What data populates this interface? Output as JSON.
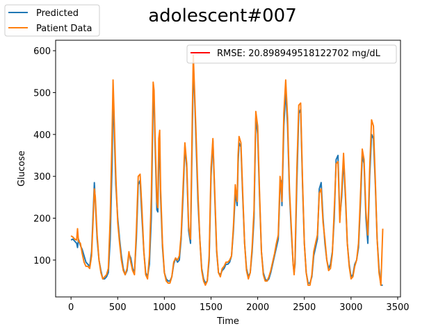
{
  "chart_data": {
    "type": "line",
    "title": "adolescent#007",
    "xlabel": "Time",
    "ylabel": "Glucose",
    "xlim": [
      -165,
      3530
    ],
    "ylim": [
      12,
      625
    ],
    "x_ticks": [
      0,
      500,
      1000,
      1500,
      2000,
      2500,
      3000,
      3500
    ],
    "y_ticks": [
      100,
      200,
      300,
      400,
      500,
      600
    ],
    "grid": false,
    "rmse_legend": {
      "label": "RMSE: 20.898949518122702 mg/dL",
      "color": "#ff0000",
      "placement": "upper right"
    },
    "figure_legend": {
      "placement": "upper left of figure",
      "entries": [
        "Predicted",
        "Patient Data"
      ]
    },
    "series": [
      {
        "name": "Predicted",
        "color": "#1f77b4",
        "x": [
          0,
          20,
          40,
          60,
          70,
          80,
          100,
          120,
          140,
          160,
          180,
          200,
          220,
          240,
          250,
          260,
          280,
          300,
          320,
          340,
          360,
          380,
          400,
          420,
          440,
          450,
          460,
          480,
          500,
          520,
          540,
          560,
          580,
          600,
          620,
          640,
          660,
          680,
          700,
          720,
          740,
          760,
          780,
          800,
          820,
          840,
          860,
          880,
          890,
          900,
          920,
          930,
          940,
          950,
          960,
          980,
          1000,
          1020,
          1040,
          1060,
          1080,
          1100,
          1120,
          1140,
          1160,
          1180,
          1200,
          1220,
          1240,
          1260,
          1280,
          1300,
          1310,
          1320,
          1340,
          1360,
          1380,
          1400,
          1420,
          1440,
          1460,
          1480,
          1500,
          1520,
          1540,
          1560,
          1580,
          1600,
          1620,
          1640,
          1660,
          1680,
          1700,
          1720,
          1740,
          1760,
          1780,
          1790,
          1800,
          1820,
          1840,
          1860,
          1880,
          1900,
          1920,
          1940,
          1960,
          1980,
          2000,
          2020,
          2040,
          2060,
          2080,
          2100,
          2120,
          2140,
          2160,
          2180,
          2200,
          2220,
          2240,
          2250,
          2260,
          2280,
          2300,
          2320,
          2340,
          2360,
          2380,
          2390,
          2400,
          2420,
          2440,
          2460,
          2480,
          2500,
          2520,
          2540,
          2560,
          2580,
          2600,
          2620,
          2640,
          2660,
          2680,
          2700,
          2720,
          2740,
          2760,
          2780,
          2800,
          2820,
          2840,
          2860,
          2880,
          2900,
          2920,
          2940,
          2960,
          2980,
          3000,
          3020,
          3040,
          3060,
          3080,
          3100,
          3120,
          3140,
          3160,
          3180,
          3200,
          3220,
          3240,
          3260,
          3280,
          3300,
          3320,
          3340
        ],
        "values": [
          148,
          150,
          145,
          140,
          130,
          150,
          135,
          125,
          110,
          95,
          90,
          85,
          120,
          230,
          285,
          240,
          150,
          100,
          75,
          55,
          55,
          60,
          70,
          150,
          330,
          495,
          430,
          280,
          200,
          150,
          110,
          80,
          65,
          75,
          115,
          105,
          80,
          70,
          150,
          280,
          290,
          200,
          120,
          70,
          60,
          90,
          200,
          490,
          480,
          380,
          220,
          215,
          330,
          370,
          250,
          130,
          70,
          55,
          50,
          50,
          60,
          90,
          105,
          95,
          100,
          150,
          250,
          370,
          320,
          170,
          140,
          420,
          555,
          520,
          380,
          240,
          150,
          80,
          55,
          45,
          50,
          100,
          300,
          385,
          250,
          120,
          70,
          65,
          75,
          80,
          90,
          90,
          95,
          110,
          170,
          260,
          230,
          330,
          380,
          370,
          250,
          140,
          80,
          60,
          70,
          120,
          200,
          440,
          400,
          250,
          120,
          70,
          55,
          50,
          55,
          70,
          90,
          110,
          130,
          150,
          280,
          290,
          230,
          420,
          505,
          420,
          260,
          170,
          90,
          70,
          90,
          290,
          450,
          460,
          280,
          140,
          70,
          45,
          45,
          60,
          110,
          130,
          150,
          270,
          285,
          200,
          140,
          100,
          80,
          90,
          120,
          200,
          340,
          350,
          200,
          250,
          340,
          250,
          140,
          90,
          60,
          65,
          90,
          100,
          130,
          230,
          350,
          330,
          200,
          140,
          300,
          400,
          390,
          280,
          150,
          80,
          40,
          40
        ]
      },
      {
        "name": "Patient Data",
        "color": "#ff7f0e",
        "x": [
          0,
          20,
          40,
          60,
          70,
          80,
          100,
          120,
          140,
          160,
          180,
          200,
          220,
          240,
          250,
          260,
          280,
          300,
          320,
          340,
          360,
          380,
          400,
          420,
          440,
          450,
          460,
          480,
          500,
          520,
          540,
          560,
          580,
          600,
          620,
          640,
          660,
          680,
          700,
          720,
          740,
          760,
          780,
          800,
          820,
          840,
          860,
          880,
          890,
          900,
          920,
          930,
          940,
          950,
          960,
          980,
          1000,
          1020,
          1040,
          1060,
          1080,
          1100,
          1120,
          1140,
          1160,
          1180,
          1200,
          1220,
          1240,
          1260,
          1280,
          1300,
          1310,
          1320,
          1340,
          1360,
          1380,
          1400,
          1420,
          1440,
          1460,
          1480,
          1500,
          1520,
          1540,
          1560,
          1580,
          1600,
          1620,
          1640,
          1660,
          1680,
          1700,
          1720,
          1740,
          1760,
          1780,
          1790,
          1800,
          1820,
          1840,
          1860,
          1880,
          1900,
          1920,
          1940,
          1960,
          1980,
          2000,
          2020,
          2040,
          2060,
          2080,
          2100,
          2120,
          2140,
          2160,
          2180,
          2200,
          2220,
          2240,
          2250,
          2260,
          2280,
          2300,
          2320,
          2340,
          2360,
          2380,
          2390,
          2400,
          2420,
          2440,
          2460,
          2480,
          2500,
          2520,
          2540,
          2560,
          2580,
          2600,
          2620,
          2640,
          2660,
          2680,
          2700,
          2720,
          2740,
          2760,
          2780,
          2800,
          2820,
          2840,
          2860,
          2880,
          2900,
          2920,
          2940,
          2960,
          2980,
          3000,
          3020,
          3040,
          3060,
          3080,
          3100,
          3120,
          3140,
          3160,
          3180,
          3200,
          3220,
          3240,
          3260,
          3280,
          3300,
          3320,
          3340
        ],
        "values": [
          158,
          155,
          150,
          148,
          175,
          145,
          140,
          115,
          95,
          85,
          85,
          80,
          110,
          215,
          270,
          250,
          160,
          100,
          70,
          55,
          60,
          65,
          80,
          200,
          400,
          530,
          460,
          300,
          190,
          140,
          100,
          75,
          65,
          80,
          120,
          95,
          75,
          65,
          170,
          300,
          305,
          220,
          120,
          65,
          55,
          110,
          250,
          525,
          505,
          400,
          240,
          225,
          390,
          410,
          270,
          140,
          70,
          50,
          45,
          45,
          60,
          95,
          105,
          100,
          110,
          160,
          270,
          380,
          330,
          180,
          150,
          460,
          590,
          530,
          400,
          260,
          150,
          75,
          50,
          40,
          50,
          110,
          320,
          390,
          260,
          125,
          70,
          60,
          80,
          85,
          95,
          95,
          100,
          110,
          180,
          280,
          240,
          350,
          395,
          380,
          260,
          140,
          75,
          55,
          70,
          130,
          220,
          455,
          420,
          260,
          120,
          65,
          50,
          50,
          60,
          75,
          95,
          115,
          140,
          160,
          300,
          280,
          240,
          450,
          530,
          440,
          270,
          180,
          90,
          65,
          100,
          320,
          470,
          475,
          290,
          140,
          70,
          40,
          40,
          65,
          120,
          140,
          160,
          260,
          270,
          190,
          150,
          100,
          75,
          80,
          115,
          220,
          330,
          335,
          190,
          265,
          355,
          260,
          140,
          85,
          55,
          60,
          85,
          100,
          140,
          250,
          365,
          340,
          215,
          160,
          320,
          435,
          420,
          290,
          150,
          70,
          40,
          175
        ]
      }
    ]
  }
}
